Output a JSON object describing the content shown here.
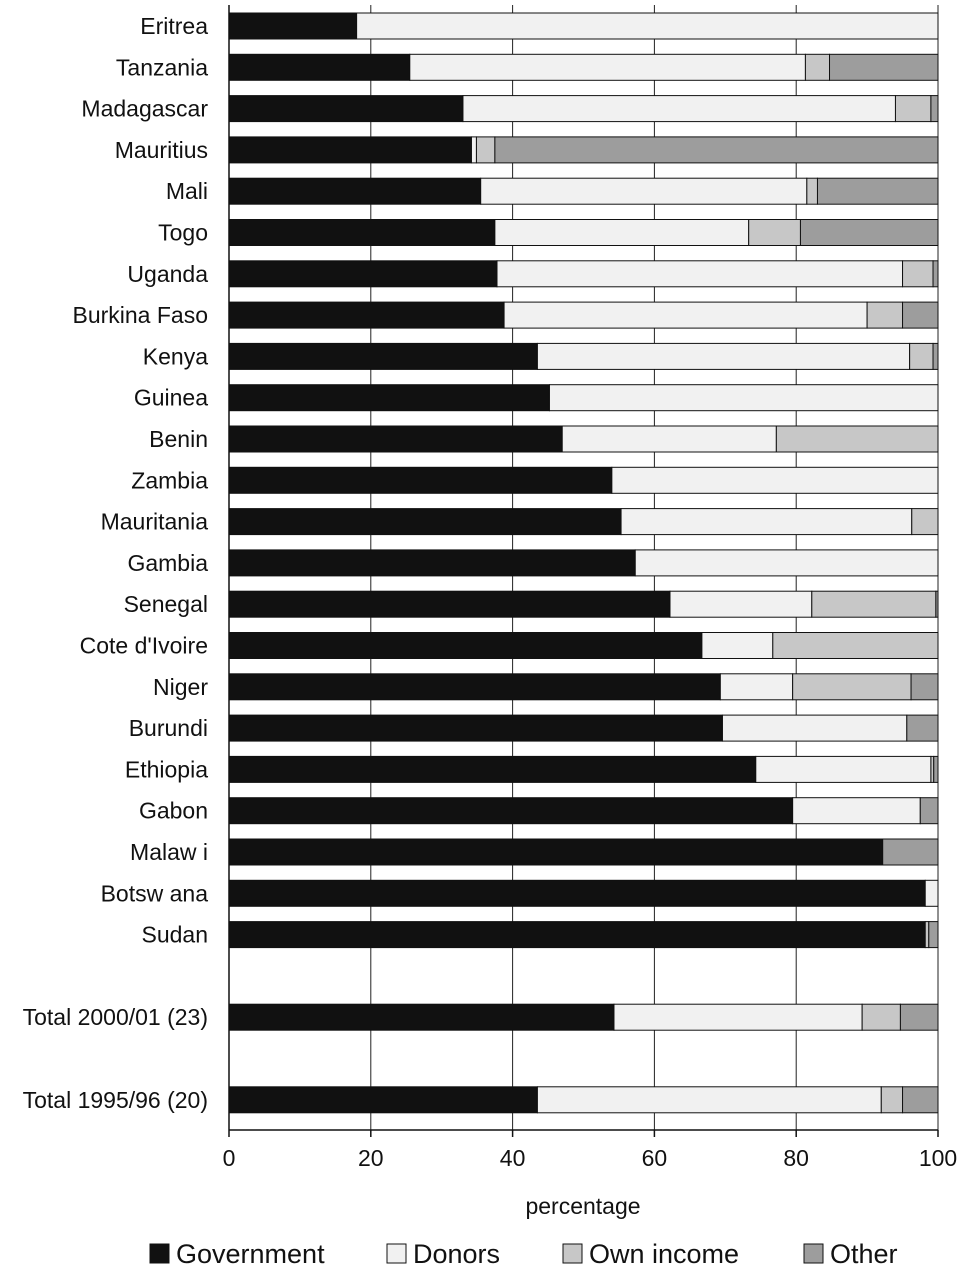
{
  "chart_data": {
    "type": "bar",
    "orientation": "horizontal",
    "stacked": true,
    "xlabel": "percentage",
    "ylabel": "",
    "title": "",
    "xlim": [
      0,
      100
    ],
    "xticks": [
      "0",
      "20",
      "40",
      "60",
      "80",
      "100"
    ],
    "grid": "vertical",
    "legend_position": "bottom",
    "categories": [
      "Eritrea",
      "Tanzania",
      "Madagascar",
      "Mauritius",
      "Mali",
      "Togo",
      "Uganda",
      "Burkina Faso",
      "Kenya",
      "Guinea",
      "Benin",
      "Zambia",
      "Mauritania",
      "Gambia",
      "Senegal",
      "Cote d'Ivoire",
      "Niger",
      "Burundi",
      "Ethiopia",
      "Gabon",
      "Malaw i",
      "Botsw ana",
      "Sudan",
      "",
      "Total 2000/01 (23)",
      "",
      "Total 1995/96 (20)"
    ],
    "series": [
      {
        "name": "Government",
        "color": "#111111",
        "values": [
          18,
          25.5,
          33,
          34.2,
          35.5,
          37.5,
          37.8,
          38.8,
          43.5,
          45.2,
          47,
          54,
          55.3,
          57.3,
          62.2,
          66.7,
          69.3,
          69.6,
          74.3,
          79.5,
          92.2,
          98.2,
          98.2,
          null,
          54.3,
          null,
          43.5
        ]
      },
      {
        "name": "Donors",
        "color": "#f1f1f1",
        "values": [
          82,
          55.8,
          61,
          0.7,
          46,
          35.8,
          57.2,
          51.2,
          52.5,
          54.8,
          30.2,
          46,
          41,
          42.7,
          20,
          10,
          10.2,
          26,
          24.7,
          18,
          0,
          1.8,
          0,
          null,
          35,
          null,
          48.5
        ]
      },
      {
        "name": "Own income",
        "color": "#c7c7c7",
        "values": [
          0,
          3.4,
          5,
          2.6,
          1.5,
          7.3,
          4.3,
          5,
          3.3,
          0,
          22.8,
          0,
          3.7,
          0,
          17.5,
          23.3,
          16.7,
          0,
          0.4,
          0,
          0,
          0,
          0.5,
          null,
          5.4,
          null,
          3
        ]
      },
      {
        "name": "Other",
        "color": "#9d9d9d",
        "values": [
          0,
          15.3,
          1,
          62.5,
          17,
          19.4,
          0.7,
          5,
          0.7,
          0,
          0,
          0,
          0,
          0,
          0.3,
          0,
          3.8,
          4.4,
          0.6,
          2.5,
          7.8,
          0,
          1.3,
          null,
          5.3,
          null,
          5
        ]
      }
    ]
  }
}
